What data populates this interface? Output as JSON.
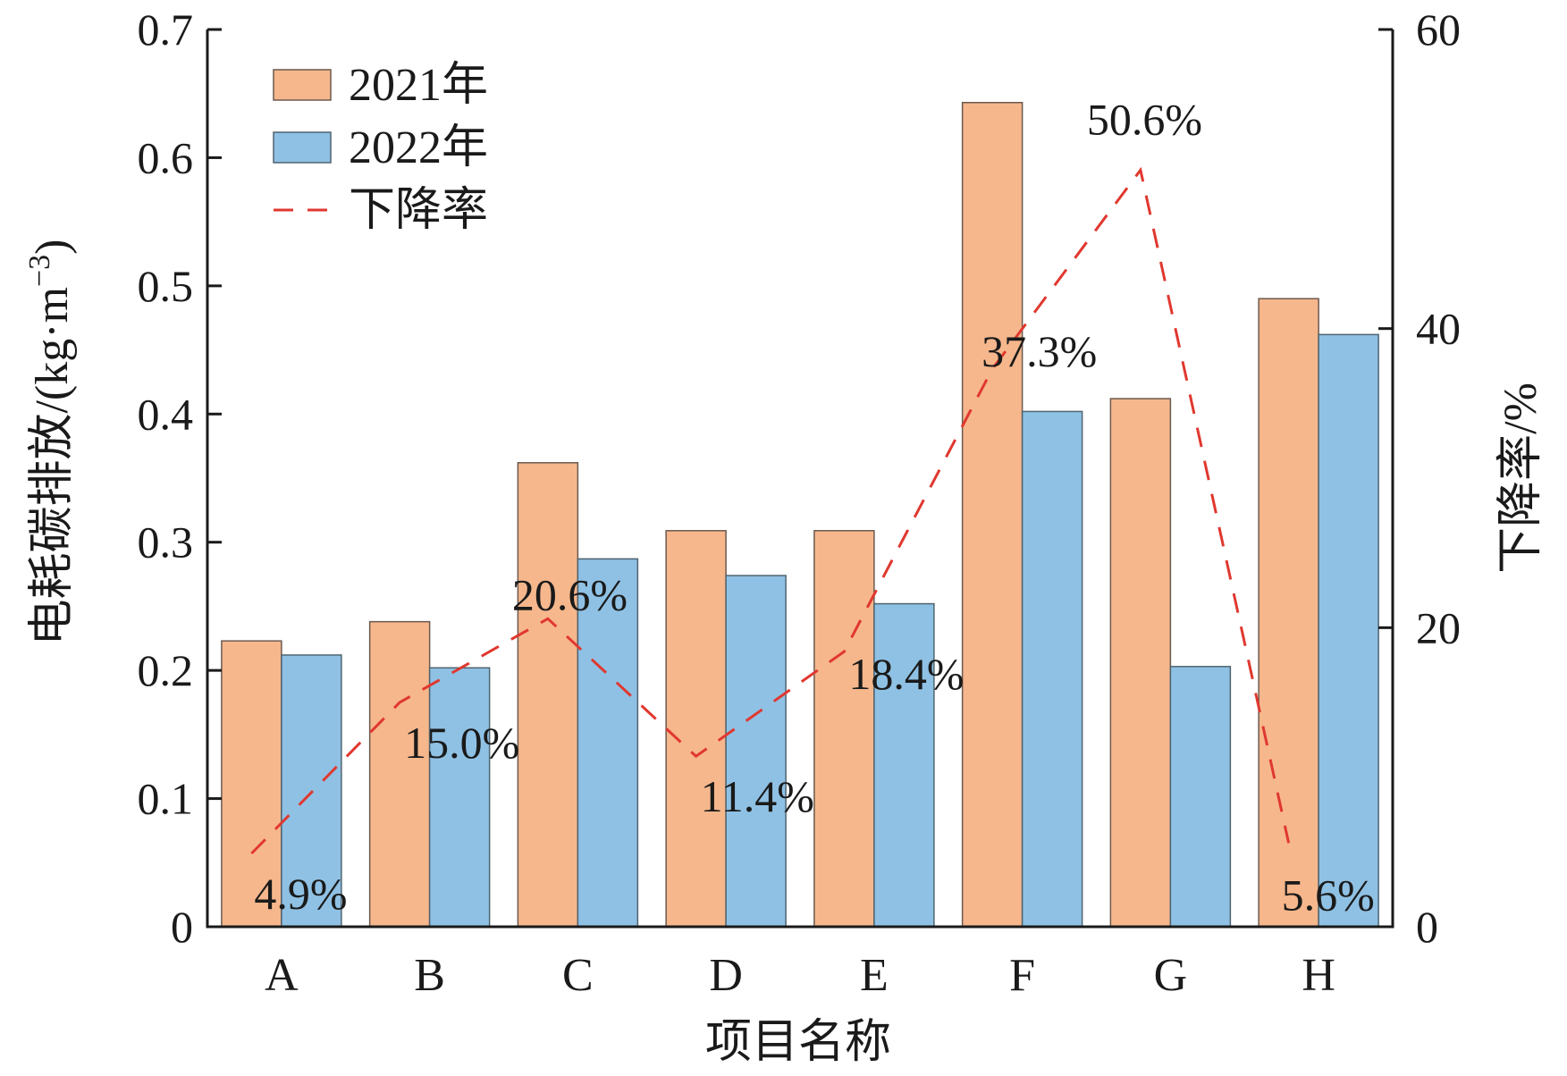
{
  "chart_data": {
    "type": "bar",
    "xlabel": "项目名称",
    "ylabel": "电耗碳排放/(kg·m",
    "ylabel_sup": "−3",
    "ylabel_close": ")",
    "y2label": "下降率/%",
    "categories": [
      "A",
      "B",
      "C",
      "D",
      "E",
      "F",
      "G",
      "H"
    ],
    "ylim": [
      0,
      0.7
    ],
    "yticks": [
      0,
      0.1,
      0.2,
      0.3,
      0.4,
      0.5,
      0.6,
      0.7
    ],
    "ytick_labels": [
      "0",
      "0.1",
      "0.2",
      "0.3",
      "0.4",
      "0.5",
      "0.6",
      "0.7"
    ],
    "y2lim": [
      0,
      60
    ],
    "y2ticks": [
      0,
      20,
      40,
      60
    ],
    "y2tick_labels": [
      "0",
      "20",
      "40",
      "60"
    ],
    "series": [
      {
        "name": "2021年",
        "type": "bar",
        "color": "#f6b78c",
        "values": [
          0.223,
          0.238,
          0.362,
          0.309,
          0.309,
          0.643,
          0.412,
          0.49
        ]
      },
      {
        "name": "2022年",
        "type": "bar",
        "color": "#8fc1e4",
        "values": [
          0.212,
          0.202,
          0.287,
          0.274,
          0.252,
          0.402,
          0.203,
          0.462
        ]
      },
      {
        "name": "下降率",
        "type": "line",
        "axis": "right",
        "color": "#e0382f",
        "line_style": "dashed",
        "values": [
          4.9,
          15.0,
          20.6,
          11.4,
          18.4,
          37.3,
          50.6,
          5.6
        ],
        "labels": [
          "4.9%",
          "15.0%",
          "20.6%",
          "11.4%",
          "18.4%",
          "37.3%",
          "50.6%",
          "5.6%"
        ]
      }
    ],
    "legend": {
      "placement": "top-left",
      "entries": [
        "2021年",
        "2022年",
        "下降率"
      ]
    },
    "grid": false
  }
}
